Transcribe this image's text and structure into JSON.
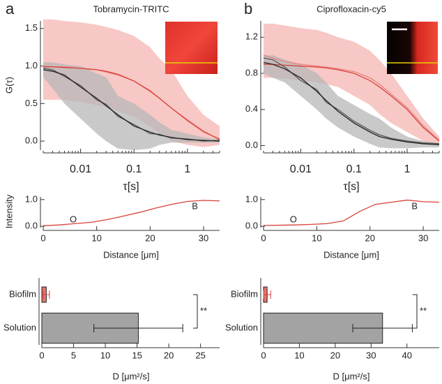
{
  "chart_data": [
    {
      "type": "line",
      "panel": "a",
      "title": "Tobramycin-TRITC",
      "xlabel": "τ[s]",
      "ylabel": "G(τ)",
      "xscale": "log",
      "xlim": [
        0.002,
        4
      ],
      "xticks": [
        0.01,
        0.1,
        1
      ],
      "ylim": [
        -0.12,
        1.6
      ],
      "yticks": [
        {
          "value": 0,
          "label": "0.0"
        },
        0.5,
        {
          "value": 1,
          "label": "1.0"
        },
        1.5
      ],
      "x": [
        0.002,
        0.003,
        0.005,
        0.01,
        0.02,
        0.03,
        0.05,
        0.1,
        0.2,
        0.3,
        0.5,
        1,
        2,
        4
      ],
      "bands": [
        {
          "color": "#f4b6b1",
          "upper": [
            1.62,
            1.62,
            1.6,
            1.58,
            1.55,
            1.52,
            1.48,
            1.4,
            1.25,
            1.1,
            0.95,
            0.6,
            0.35,
            0.2
          ],
          "lower": [
            0.55,
            0.55,
            0.55,
            0.52,
            0.48,
            0.45,
            0.4,
            0.32,
            0.2,
            0.1,
            0.0,
            -0.05,
            -0.08,
            -0.05
          ]
        },
        {
          "color": "#b7b7b7",
          "upper": [
            1.05,
            1.05,
            1.02,
            1.0,
            0.9,
            0.85,
            0.6,
            0.5,
            0.35,
            0.25,
            0.15,
            0.1,
            0.05,
            0.02
          ],
          "lower": [
            0.85,
            0.7,
            0.5,
            0.3,
            0.1,
            0.0,
            -0.1,
            -0.12,
            -0.1,
            -0.05,
            -0.02,
            -0.02,
            -0.02,
            -0.02
          ]
        }
      ],
      "series": [
        {
          "color": "#e8827b",
          "values": [
            1.0,
            0.99,
            0.99,
            0.97,
            0.95,
            0.92,
            0.88,
            0.8,
            0.66,
            0.57,
            0.44,
            0.27,
            0.12,
            0.03
          ]
        },
        {
          "color": "#d9413a",
          "values": [
            0.99,
            0.99,
            0.98,
            0.97,
            0.95,
            0.93,
            0.89,
            0.8,
            0.67,
            0.57,
            0.44,
            0.28,
            0.13,
            0.02
          ]
        },
        {
          "color": "#555555",
          "values": [
            0.97,
            0.95,
            0.86,
            0.74,
            0.55,
            0.49,
            0.33,
            0.22,
            0.1,
            0.09,
            0.04,
            0.03,
            0.0,
            0.01
          ]
        },
        {
          "color": "#222222",
          "values": [
            0.95,
            0.93,
            0.88,
            0.72,
            0.57,
            0.47,
            0.35,
            0.2,
            0.12,
            0.08,
            0.05,
            0.02,
            0.01,
            0.0
          ]
        }
      ]
    },
    {
      "type": "line",
      "panel": "b",
      "title": "Ciprofloxacin-cy5",
      "xlabel": "τ[s]",
      "xscale": "log",
      "xlim": [
        0.002,
        4
      ],
      "xticks": [
        0.01,
        0.1,
        1
      ],
      "ylim": [
        -0.05,
        1.38
      ],
      "yticks": [
        {
          "value": 0,
          "label": "0.0"
        },
        0.4,
        0.8,
        1.2
      ],
      "x": [
        0.002,
        0.003,
        0.005,
        0.01,
        0.02,
        0.03,
        0.05,
        0.1,
        0.2,
        0.3,
        0.5,
        1,
        2,
        4
      ],
      "bands": [
        {
          "color": "#f4b6b1",
          "upper": [
            1.35,
            1.35,
            1.33,
            1.3,
            1.28,
            1.25,
            1.2,
            1.15,
            1.05,
            0.95,
            0.8,
            0.55,
            0.3,
            0.1
          ],
          "lower": [
            0.75,
            0.75,
            0.74,
            0.72,
            0.7,
            0.68,
            0.65,
            0.55,
            0.45,
            0.35,
            0.25,
            0.15,
            0.05,
            0.0
          ]
        },
        {
          "color": "#b7b7b7",
          "upper": [
            1.0,
            1.0,
            0.95,
            0.9,
            0.8,
            0.7,
            0.55,
            0.45,
            0.35,
            0.3,
            0.2,
            0.1,
            0.05,
            0.03
          ],
          "lower": [
            0.8,
            0.75,
            0.7,
            0.55,
            0.4,
            0.3,
            0.2,
            0.1,
            0.02,
            -0.02,
            -0.03,
            -0.03,
            -0.02,
            -0.02
          ]
        }
      ],
      "series": [
        {
          "color": "#e8827b",
          "values": [
            1.0,
            0.97,
            0.93,
            0.9,
            0.88,
            0.87,
            0.85,
            0.82,
            0.75,
            0.68,
            0.57,
            0.42,
            0.22,
            0.06
          ]
        },
        {
          "color": "#d9413a",
          "values": [
            0.9,
            0.9,
            0.89,
            0.88,
            0.87,
            0.86,
            0.84,
            0.8,
            0.72,
            0.65,
            0.55,
            0.4,
            0.2,
            0.05
          ]
        },
        {
          "color": "#555555",
          "values": [
            0.97,
            0.95,
            0.87,
            0.72,
            0.62,
            0.48,
            0.4,
            0.27,
            0.17,
            0.12,
            0.08,
            0.05,
            0.03,
            0.02
          ]
        },
        {
          "color": "#222222",
          "values": [
            0.92,
            0.9,
            0.85,
            0.75,
            0.6,
            0.5,
            0.38,
            0.25,
            0.15,
            0.1,
            0.07,
            0.04,
            0.02,
            0.01
          ]
        }
      ]
    },
    {
      "type": "profile",
      "xlabel": "Distance [μm]",
      "ylabel": "Intensity",
      "annotations": [
        "O",
        "B"
      ],
      "xlim": [
        0,
        33
      ],
      "xticks": [
        0,
        10,
        20,
        30
      ],
      "ylim": [
        -0.05,
        1.1
      ],
      "yticks": [
        {
          "value": 0,
          "label": "0.0"
        },
        {
          "value": 1,
          "label": "1.0"
        }
      ],
      "x": [
        0,
        3,
        6,
        9,
        12,
        15,
        18,
        21,
        24,
        27,
        30,
        33
      ],
      "series": [
        {
          "color": "#d9413a",
          "values": [
            0.02,
            0.05,
            0.1,
            0.15,
            0.25,
            0.38,
            0.52,
            0.68,
            0.82,
            0.93,
            0.97,
            0.95
          ]
        }
      ]
    },
    {
      "type": "profile",
      "xlabel": "Distance [μm]",
      "annotations": [
        "O",
        "B"
      ],
      "xlim": [
        0,
        33
      ],
      "xticks": [
        0,
        10,
        20,
        30
      ],
      "ylim": [
        -0.05,
        1.1
      ],
      "yticks": [
        {
          "value": 0,
          "label": "0.0"
        },
        {
          "value": 1,
          "label": "1.0"
        }
      ],
      "x": [
        0,
        3,
        6,
        9,
        12,
        15,
        18,
        21,
        24,
        27,
        30,
        33
      ],
      "series": [
        {
          "color": "#d9413a",
          "values": [
            0.03,
            0.04,
            0.05,
            0.07,
            0.1,
            0.2,
            0.55,
            0.82,
            0.9,
            0.98,
            0.92,
            0.9
          ]
        }
      ]
    },
    {
      "type": "hbar",
      "xlabel": "D [μm²/s]",
      "annotation": "**",
      "categories": [
        "Biofilm",
        "Solution"
      ],
      "values": [
        0.7,
        15.2
      ],
      "errors": [
        0.5,
        7.0
      ],
      "colors": [
        "#e8736a",
        "#a3a3a3"
      ],
      "xlim": [
        0,
        28
      ],
      "xticks": [
        0,
        5,
        10,
        15,
        20,
        25
      ]
    },
    {
      "type": "hbar",
      "xlabel": "D [μm²/s]",
      "annotation": "**",
      "categories": [
        "Biofilm",
        "Solution"
      ],
      "values": [
        1.0,
        33.2
      ],
      "errors": [
        1.0,
        8.3
      ],
      "colors": [
        "#e8736a",
        "#a3a3a3"
      ],
      "xlim": [
        0,
        49
      ],
      "xticks": [
        0,
        10,
        20,
        30,
        40
      ]
    }
  ]
}
